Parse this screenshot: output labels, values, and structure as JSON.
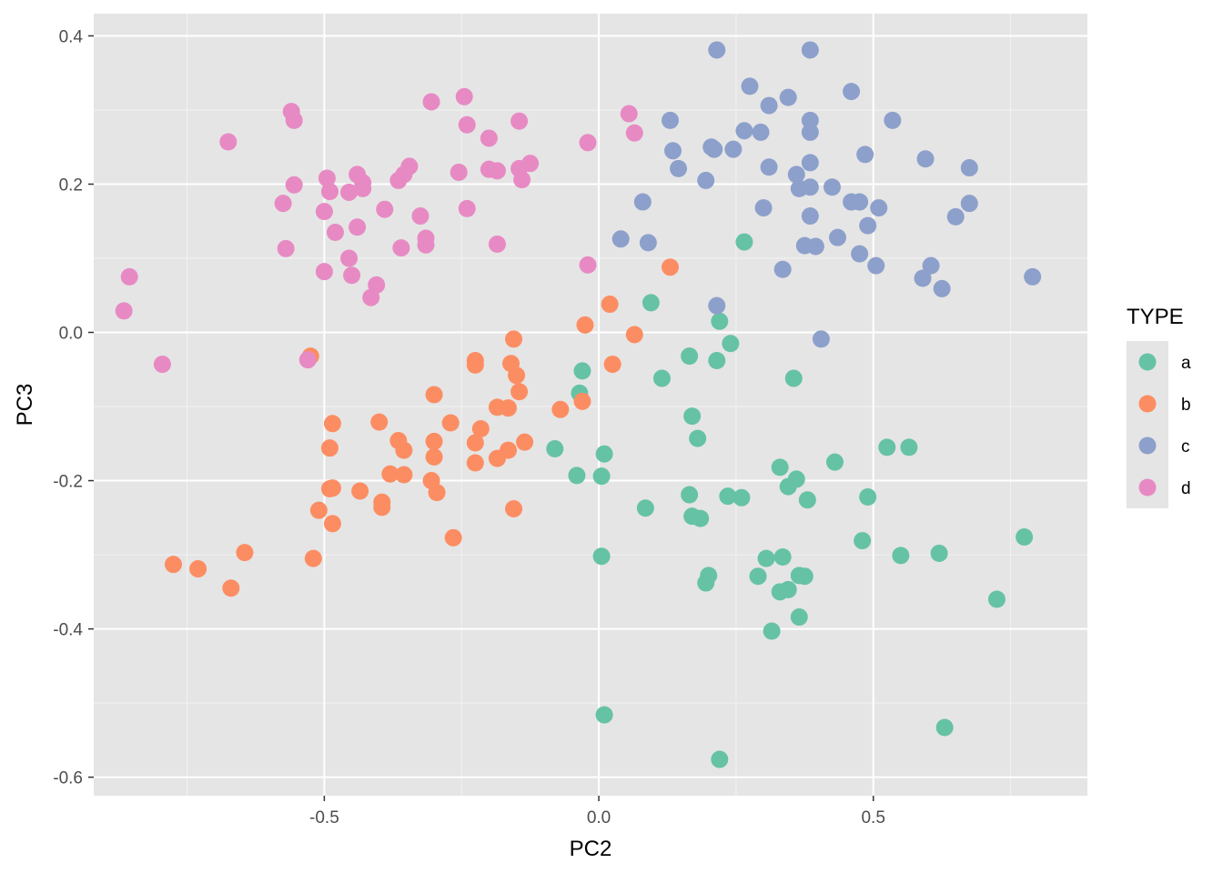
{
  "chart_data": {
    "type": "scatter",
    "xlabel": "PC2",
    "ylabel": "PC3",
    "xlim": [
      -0.92,
      0.89
    ],
    "ylim": [
      -0.625,
      0.43
    ],
    "x_ticks": [
      -0.5,
      0.0,
      0.5
    ],
    "x_tick_labels": [
      "-0.5",
      "0.0",
      "0.5"
    ],
    "y_ticks": [
      0.4,
      0.2,
      0.0,
      -0.2,
      -0.4,
      -0.6
    ],
    "y_tick_labels": [
      "0.4",
      "0.2",
      "0.0",
      "-0.2",
      "-0.4",
      "-0.6"
    ],
    "grid": true,
    "legend": {
      "title": "TYPE",
      "position": "right"
    },
    "series": [
      {
        "name": "a",
        "color": "#66c2a5",
        "points": [
          [
            0.265,
            0.122
          ],
          [
            0.095,
            0.04
          ],
          [
            0.22,
            0.015
          ],
          [
            0.24,
            -0.015
          ],
          [
            0.165,
            -0.032
          ],
          [
            0.215,
            -0.038
          ],
          [
            -0.03,
            -0.052
          ],
          [
            0.115,
            -0.062
          ],
          [
            0.355,
            -0.062
          ],
          [
            -0.035,
            -0.082
          ],
          [
            0.17,
            -0.113
          ],
          [
            0.18,
            -0.143
          ],
          [
            -0.08,
            -0.157
          ],
          [
            0.01,
            -0.164
          ],
          [
            0.525,
            -0.155
          ],
          [
            0.565,
            -0.155
          ],
          [
            0.43,
            -0.175
          ],
          [
            0.33,
            -0.182
          ],
          [
            -0.04,
            -0.193
          ],
          [
            0.005,
            -0.194
          ],
          [
            0.36,
            -0.198
          ],
          [
            0.345,
            -0.208
          ],
          [
            0.165,
            -0.219
          ],
          [
            0.235,
            -0.221
          ],
          [
            0.26,
            -0.223
          ],
          [
            0.49,
            -0.222
          ],
          [
            0.38,
            -0.226
          ],
          [
            0.085,
            -0.237
          ],
          [
            0.17,
            -0.248
          ],
          [
            0.185,
            -0.251
          ],
          [
            0.775,
            -0.276
          ],
          [
            0.48,
            -0.281
          ],
          [
            0.62,
            -0.298
          ],
          [
            0.005,
            -0.302
          ],
          [
            0.55,
            -0.301
          ],
          [
            0.305,
            -0.305
          ],
          [
            0.335,
            -0.303
          ],
          [
            0.2,
            -0.328
          ],
          [
            0.29,
            -0.329
          ],
          [
            0.365,
            -0.328
          ],
          [
            0.375,
            -0.329
          ],
          [
            0.195,
            -0.338
          ],
          [
            0.345,
            -0.347
          ],
          [
            0.33,
            -0.35
          ],
          [
            0.725,
            -0.36
          ],
          [
            0.365,
            -0.384
          ],
          [
            0.315,
            -0.403
          ],
          [
            0.01,
            -0.516
          ],
          [
            0.63,
            -0.533
          ],
          [
            0.22,
            -0.576
          ]
        ]
      },
      {
        "name": "b",
        "color": "#fc8d62",
        "points": [
          [
            0.13,
            0.088
          ],
          [
            0.02,
            0.038
          ],
          [
            -0.025,
            0.01
          ],
          [
            0.065,
            -0.003
          ],
          [
            -0.155,
            -0.009
          ],
          [
            -0.525,
            -0.032
          ],
          [
            -0.225,
            -0.038
          ],
          [
            -0.16,
            -0.042
          ],
          [
            0.025,
            -0.043
          ],
          [
            -0.225,
            -0.044
          ],
          [
            -0.15,
            -0.058
          ],
          [
            -0.145,
            -0.08
          ],
          [
            -0.3,
            -0.084
          ],
          [
            -0.03,
            -0.093
          ],
          [
            -0.185,
            -0.101
          ],
          [
            -0.165,
            -0.102
          ],
          [
            -0.07,
            -0.104
          ],
          [
            -0.4,
            -0.121
          ],
          [
            -0.27,
            -0.122
          ],
          [
            -0.485,
            -0.123
          ],
          [
            -0.215,
            -0.13
          ],
          [
            -0.365,
            -0.146
          ],
          [
            -0.3,
            -0.147
          ],
          [
            -0.225,
            -0.149
          ],
          [
            -0.135,
            -0.148
          ],
          [
            -0.49,
            -0.156
          ],
          [
            -0.355,
            -0.159
          ],
          [
            -0.165,
            -0.159
          ],
          [
            -0.3,
            -0.168
          ],
          [
            -0.185,
            -0.17
          ],
          [
            -0.225,
            -0.176
          ],
          [
            -0.38,
            -0.191
          ],
          [
            -0.355,
            -0.192
          ],
          [
            -0.305,
            -0.2
          ],
          [
            -0.49,
            -0.211
          ],
          [
            -0.485,
            -0.21
          ],
          [
            -0.435,
            -0.214
          ],
          [
            -0.295,
            -0.216
          ],
          [
            -0.395,
            -0.229
          ],
          [
            -0.395,
            -0.236
          ],
          [
            -0.155,
            -0.238
          ],
          [
            -0.51,
            -0.24
          ],
          [
            -0.485,
            -0.258
          ],
          [
            -0.265,
            -0.277
          ],
          [
            -0.645,
            -0.297
          ],
          [
            -0.52,
            -0.305
          ],
          [
            -0.775,
            -0.313
          ],
          [
            -0.73,
            -0.319
          ],
          [
            -0.67,
            -0.345
          ]
        ]
      },
      {
        "name": "c",
        "color": "#8da0cb",
        "points": [
          [
            0.215,
            0.381
          ],
          [
            0.385,
            0.381
          ],
          [
            0.275,
            0.332
          ],
          [
            0.46,
            0.325
          ],
          [
            0.345,
            0.317
          ],
          [
            0.31,
            0.306
          ],
          [
            0.13,
            0.286
          ],
          [
            0.385,
            0.286
          ],
          [
            0.535,
            0.286
          ],
          [
            0.265,
            0.272
          ],
          [
            0.295,
            0.27
          ],
          [
            0.385,
            0.27
          ],
          [
            0.205,
            0.25
          ],
          [
            0.21,
            0.247
          ],
          [
            0.135,
            0.245
          ],
          [
            0.245,
            0.247
          ],
          [
            0.485,
            0.24
          ],
          [
            0.595,
            0.234
          ],
          [
            0.385,
            0.229
          ],
          [
            0.145,
            0.221
          ],
          [
            0.31,
            0.223
          ],
          [
            0.675,
            0.222
          ],
          [
            0.36,
            0.213
          ],
          [
            0.195,
            0.205
          ],
          [
            0.425,
            0.196
          ],
          [
            0.365,
            0.194
          ],
          [
            0.385,
            0.196
          ],
          [
            0.08,
            0.176
          ],
          [
            0.46,
            0.176
          ],
          [
            0.475,
            0.176
          ],
          [
            0.675,
            0.174
          ],
          [
            0.51,
            0.168
          ],
          [
            0.3,
            0.168
          ],
          [
            0.385,
            0.157
          ],
          [
            0.65,
            0.156
          ],
          [
            0.49,
            0.144
          ],
          [
            0.04,
            0.126
          ],
          [
            0.435,
            0.128
          ],
          [
            0.09,
            0.121
          ],
          [
            0.375,
            0.117
          ],
          [
            0.395,
            0.116
          ],
          [
            0.475,
            0.106
          ],
          [
            0.505,
            0.09
          ],
          [
            0.605,
            0.09
          ],
          [
            0.335,
            0.085
          ],
          [
            0.79,
            0.075
          ],
          [
            0.59,
            0.073
          ],
          [
            0.625,
            0.059
          ],
          [
            0.215,
            0.036
          ],
          [
            0.405,
            -0.009
          ]
        ]
      },
      {
        "name": "d",
        "color": "#e78ac3",
        "points": [
          [
            -0.245,
            0.318
          ],
          [
            -0.305,
            0.311
          ],
          [
            -0.56,
            0.298
          ],
          [
            0.055,
            0.295
          ],
          [
            -0.555,
            0.286
          ],
          [
            -0.145,
            0.285
          ],
          [
            -0.24,
            0.28
          ],
          [
            0.065,
            0.269
          ],
          [
            -0.2,
            0.262
          ],
          [
            -0.675,
            0.257
          ],
          [
            -0.02,
            0.256
          ],
          [
            -0.125,
            0.228
          ],
          [
            -0.345,
            0.224
          ],
          [
            -0.2,
            0.22
          ],
          [
            -0.145,
            0.221
          ],
          [
            -0.255,
            0.216
          ],
          [
            -0.185,
            0.218
          ],
          [
            -0.44,
            0.213
          ],
          [
            -0.355,
            0.213
          ],
          [
            -0.495,
            0.208
          ],
          [
            -0.14,
            0.206
          ],
          [
            -0.365,
            0.205
          ],
          [
            -0.43,
            0.202
          ],
          [
            -0.555,
            0.199
          ],
          [
            -0.43,
            0.194
          ],
          [
            -0.49,
            0.19
          ],
          [
            -0.455,
            0.189
          ],
          [
            -0.575,
            0.174
          ],
          [
            -0.39,
            0.166
          ],
          [
            -0.24,
            0.167
          ],
          [
            -0.5,
            0.163
          ],
          [
            -0.325,
            0.157
          ],
          [
            -0.44,
            0.142
          ],
          [
            -0.48,
            0.135
          ],
          [
            -0.315,
            0.127
          ],
          [
            -0.185,
            0.119
          ],
          [
            -0.315,
            0.118
          ],
          [
            -0.36,
            0.114
          ],
          [
            -0.57,
            0.113
          ],
          [
            -0.455,
            0.1
          ],
          [
            -0.02,
            0.091
          ],
          [
            -0.5,
            0.082
          ],
          [
            -0.45,
            0.077
          ],
          [
            -0.855,
            0.075
          ],
          [
            -0.405,
            0.064
          ],
          [
            -0.415,
            0.047
          ],
          [
            -0.865,
            0.029
          ],
          [
            -0.53,
            -0.037
          ],
          [
            -0.795,
            -0.043
          ]
        ]
      }
    ]
  }
}
